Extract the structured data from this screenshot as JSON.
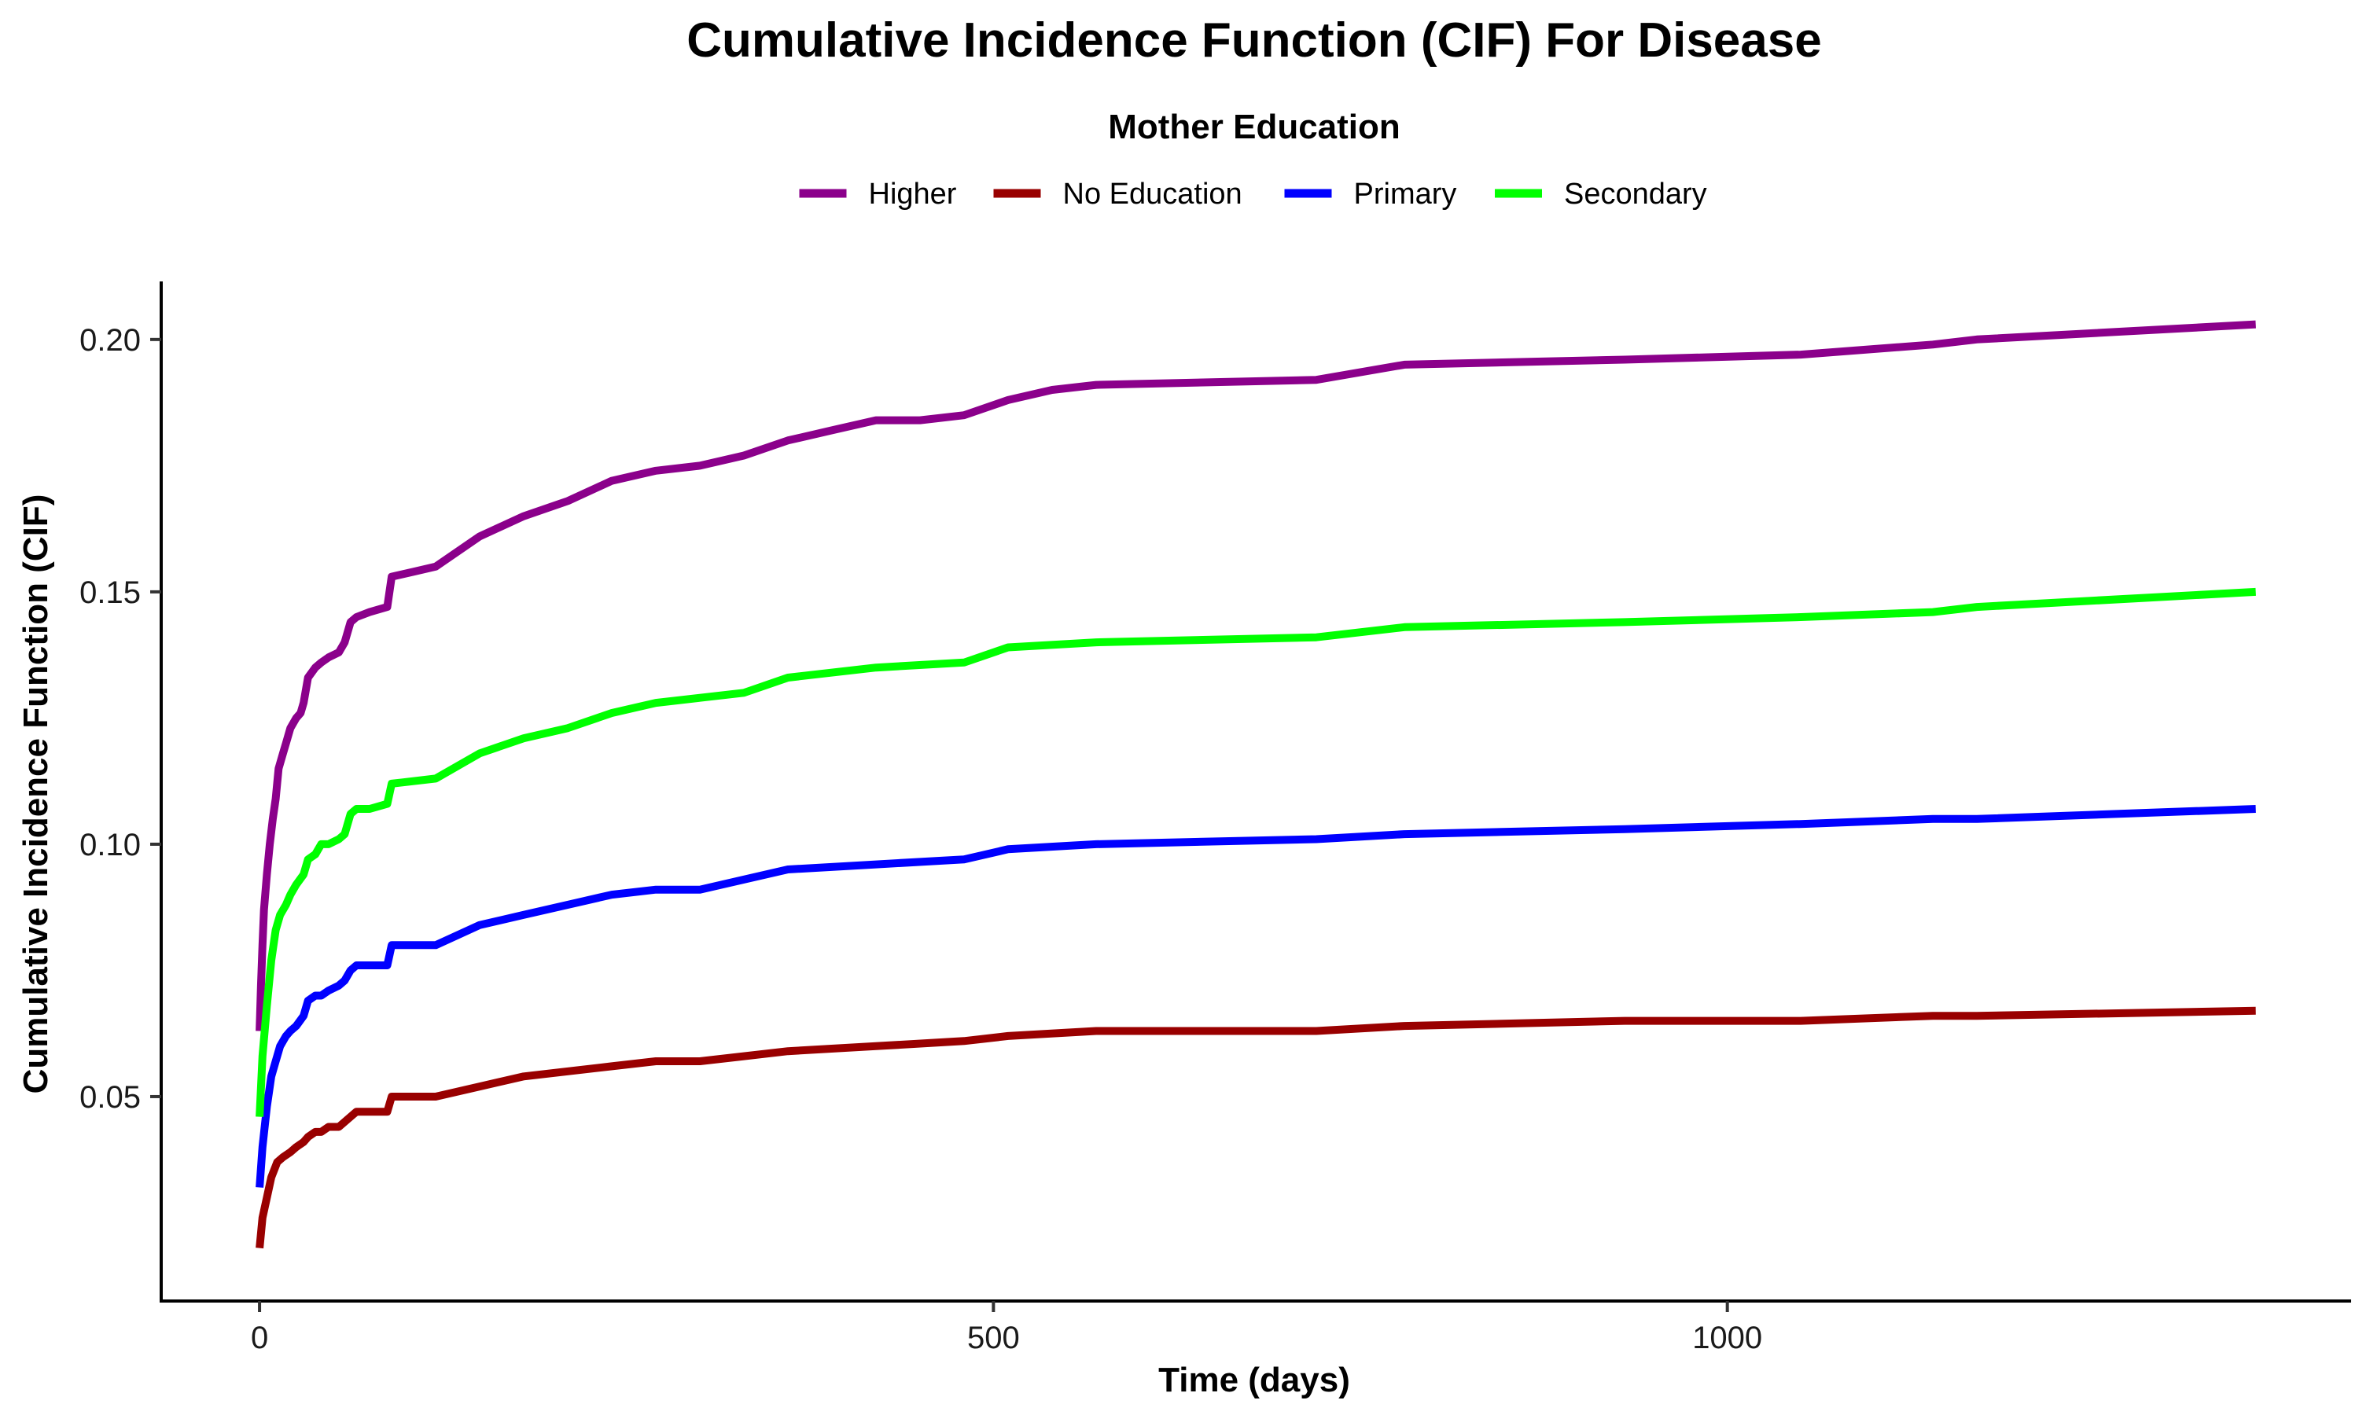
{
  "chart_data": {
    "type": "line",
    "title": "Cumulative Incidence Function (CIF) For Disease",
    "xlabel": "Time (days)",
    "ylabel": "Cumulative Incidence Function (CIF)",
    "xlim": [
      -67,
      1425
    ],
    "ylim": [
      0.0095,
      0.2115
    ],
    "x_ticks": [
      0,
      500,
      1000
    ],
    "x_tick_labels": [
      "0",
      "500",
      "1000"
    ],
    "y_ticks": [
      0.05,
      0.1,
      0.15,
      0.2
    ],
    "y_tick_labels": [
      "0.05",
      "0.10",
      "0.15",
      "0.20"
    ],
    "grid": false,
    "legend": {
      "title": "Mother Education",
      "position": "top"
    },
    "series": [
      {
        "name": "Higher",
        "color": "#8B008B",
        "points": [
          [
            0,
            0.063
          ],
          [
            1,
            0.072
          ],
          [
            2,
            0.08
          ],
          [
            3,
            0.087
          ],
          [
            5,
            0.094
          ],
          [
            7,
            0.1
          ],
          [
            9,
            0.105
          ],
          [
            11,
            0.109
          ],
          [
            13,
            0.115
          ],
          [
            16,
            0.118
          ],
          [
            18,
            0.12
          ],
          [
            21,
            0.123
          ],
          [
            25,
            0.125
          ],
          [
            28,
            0.126
          ],
          [
            30,
            0.128
          ],
          [
            33,
            0.133
          ],
          [
            38,
            0.135
          ],
          [
            42,
            0.136
          ],
          [
            47,
            0.137
          ],
          [
            54,
            0.138
          ],
          [
            58,
            0.14
          ],
          [
            62,
            0.144
          ],
          [
            66,
            0.145
          ],
          [
            75,
            0.146
          ],
          [
            87,
            0.147
          ],
          [
            90,
            0.153
          ],
          [
            105,
            0.154
          ],
          [
            120,
            0.155
          ],
          [
            150,
            0.161
          ],
          [
            180,
            0.165
          ],
          [
            210,
            0.168
          ],
          [
            240,
            0.172
          ],
          [
            270,
            0.174
          ],
          [
            300,
            0.175
          ],
          [
            330,
            0.177
          ],
          [
            360,
            0.18
          ],
          [
            390,
            0.182
          ],
          [
            420,
            0.184
          ],
          [
            450,
            0.184
          ],
          [
            480,
            0.185
          ],
          [
            510,
            0.188
          ],
          [
            540,
            0.19
          ],
          [
            570,
            0.191
          ],
          [
            720,
            0.192
          ],
          [
            780,
            0.195
          ],
          [
            930,
            0.196
          ],
          [
            1050,
            0.197
          ],
          [
            1140,
            0.199
          ],
          [
            1170,
            0.2
          ],
          [
            1360,
            0.203
          ]
        ]
      },
      {
        "name": "No Education",
        "color": "#990000",
        "points": [
          [
            0,
            0.02
          ],
          [
            2,
            0.026
          ],
          [
            5,
            0.03
          ],
          [
            8,
            0.034
          ],
          [
            12,
            0.037
          ],
          [
            16,
            0.038
          ],
          [
            21,
            0.039
          ],
          [
            25,
            0.04
          ],
          [
            30,
            0.041
          ],
          [
            33,
            0.042
          ],
          [
            38,
            0.043
          ],
          [
            42,
            0.043
          ],
          [
            47,
            0.044
          ],
          [
            54,
            0.044
          ],
          [
            58,
            0.045
          ],
          [
            62,
            0.046
          ],
          [
            66,
            0.047
          ],
          [
            75,
            0.047
          ],
          [
            87,
            0.047
          ],
          [
            90,
            0.05
          ],
          [
            120,
            0.05
          ],
          [
            150,
            0.052
          ],
          [
            180,
            0.054
          ],
          [
            240,
            0.056
          ],
          [
            270,
            0.057
          ],
          [
            300,
            0.057
          ],
          [
            330,
            0.058
          ],
          [
            360,
            0.059
          ],
          [
            420,
            0.06
          ],
          [
            480,
            0.061
          ],
          [
            510,
            0.062
          ],
          [
            570,
            0.063
          ],
          [
            720,
            0.063
          ],
          [
            780,
            0.064
          ],
          [
            930,
            0.065
          ],
          [
            1050,
            0.065
          ],
          [
            1140,
            0.066
          ],
          [
            1170,
            0.066
          ],
          [
            1360,
            0.067
          ]
        ]
      },
      {
        "name": "Primary",
        "color": "#0000FF",
        "points": [
          [
            0,
            0.032
          ],
          [
            2,
            0.04
          ],
          [
            5,
            0.048
          ],
          [
            8,
            0.054
          ],
          [
            11,
            0.057
          ],
          [
            14,
            0.06
          ],
          [
            18,
            0.062
          ],
          [
            21,
            0.063
          ],
          [
            25,
            0.064
          ],
          [
            30,
            0.066
          ],
          [
            33,
            0.069
          ],
          [
            38,
            0.07
          ],
          [
            42,
            0.07
          ],
          [
            47,
            0.071
          ],
          [
            54,
            0.072
          ],
          [
            58,
            0.073
          ],
          [
            62,
            0.075
          ],
          [
            66,
            0.076
          ],
          [
            75,
            0.076
          ],
          [
            87,
            0.076
          ],
          [
            90,
            0.08
          ],
          [
            120,
            0.08
          ],
          [
            150,
            0.084
          ],
          [
            180,
            0.086
          ],
          [
            240,
            0.09
          ],
          [
            270,
            0.091
          ],
          [
            300,
            0.091
          ],
          [
            330,
            0.093
          ],
          [
            360,
            0.095
          ],
          [
            420,
            0.096
          ],
          [
            480,
            0.097
          ],
          [
            510,
            0.099
          ],
          [
            570,
            0.1
          ],
          [
            720,
            0.101
          ],
          [
            780,
            0.102
          ],
          [
            930,
            0.103
          ],
          [
            1050,
            0.104
          ],
          [
            1140,
            0.105
          ],
          [
            1170,
            0.105
          ],
          [
            1360,
            0.107
          ]
        ]
      },
      {
        "name": "Secondary",
        "color": "#00FF00",
        "points": [
          [
            0,
            0.046
          ],
          [
            2,
            0.058
          ],
          [
            5,
            0.068
          ],
          [
            8,
            0.077
          ],
          [
            11,
            0.083
          ],
          [
            14,
            0.086
          ],
          [
            18,
            0.088
          ],
          [
            21,
            0.09
          ],
          [
            25,
            0.092
          ],
          [
            30,
            0.094
          ],
          [
            33,
            0.097
          ],
          [
            38,
            0.098
          ],
          [
            42,
            0.1
          ],
          [
            47,
            0.1
          ],
          [
            54,
            0.101
          ],
          [
            58,
            0.102
          ],
          [
            62,
            0.106
          ],
          [
            66,
            0.107
          ],
          [
            75,
            0.107
          ],
          [
            87,
            0.108
          ],
          [
            90,
            0.112
          ],
          [
            120,
            0.113
          ],
          [
            150,
            0.118
          ],
          [
            180,
            0.121
          ],
          [
            210,
            0.123
          ],
          [
            240,
            0.126
          ],
          [
            270,
            0.128
          ],
          [
            300,
            0.129
          ],
          [
            330,
            0.13
          ],
          [
            360,
            0.133
          ],
          [
            420,
            0.135
          ],
          [
            480,
            0.136
          ],
          [
            510,
            0.139
          ],
          [
            570,
            0.14
          ],
          [
            720,
            0.141
          ],
          [
            780,
            0.143
          ],
          [
            930,
            0.144
          ],
          [
            1050,
            0.145
          ],
          [
            1140,
            0.146
          ],
          [
            1170,
            0.147
          ],
          [
            1360,
            0.15
          ]
        ]
      }
    ]
  }
}
